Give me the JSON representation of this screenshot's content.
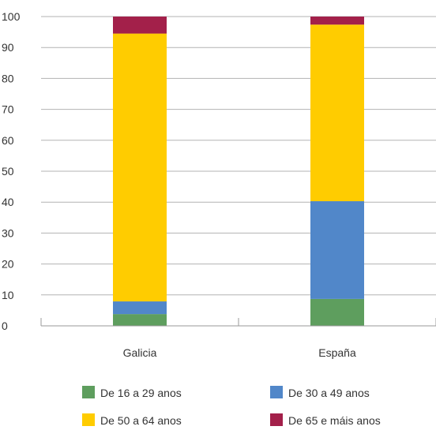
{
  "chart_data": {
    "type": "bar",
    "stacked": true,
    "categories": [
      "Galicia",
      "España"
    ],
    "series": [
      {
        "name": "De 16 a 29 anos",
        "color": "#5e9e5e",
        "values": [
          3.8,
          8.7
        ]
      },
      {
        "name": "De 30 a 49 anos",
        "color": "#5187c9",
        "values": [
          4.1,
          31.6
        ]
      },
      {
        "name": "De 50 a 64 anos",
        "color": "#ffcc00",
        "values": [
          86.6,
          57.1
        ]
      },
      {
        "name": "De 65 e máis anos",
        "color": "#a3204a",
        "values": [
          5.5,
          2.6
        ]
      }
    ],
    "ylim": [
      0,
      100
    ],
    "yticks": [
      0,
      10,
      20,
      30,
      40,
      50,
      60,
      70,
      80,
      90,
      100
    ],
    "grid": true,
    "legend_position": "bottom"
  }
}
